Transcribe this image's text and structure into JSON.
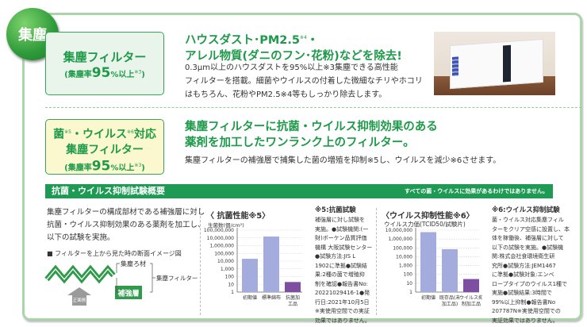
{
  "badge": "集塵",
  "section1": {
    "box_title": "集塵フィルター",
    "box_sub_prefix": "(集塵率",
    "box_sub_value": "95",
    "box_sub_suffix": "%以上",
    "box_note": "※3",
    ")": ")",
    "headline_1": "ハウスダスト･PM2.5",
    "headline_1_note": "※4",
    "headline_1_end": "・",
    "headline_2": "アレル物質(ダニのフン･花粉)などを除去!",
    "body": [
      "0.3μm以上のハウスダストを95%以上※3集塵できる高性能",
      "フィルターを搭載。細菌やウイルスの付着した微細なチリやホコリ",
      "はもちろん、花粉やPM2.5※4等もしっかり除去します。"
    ]
  },
  "section2": {
    "box_line1": "菌",
    "box_note5": "※5",
    "box_line1b": "・ウイルス",
    "box_note6": "※6",
    "box_line1c": "対応",
    "box_line2": "集塵フィルター",
    "box_sub_prefix": "(集塵率",
    "box_sub_value": "95",
    "box_sub_suffix": "%以上",
    "box_note": "※3",
    "headline_1": "集塵フィルターに抗菌・ウイルス抑制効果のある",
    "headline_2": "薬剤を加工したワンランク上のフィルター。",
    "body": "集塵フィルターの補強層で捕集した菌の増殖を抑制※5し、ウイルスを減少※6させます。"
  },
  "test": {
    "title": "抗菌・ウイルス抑制試験概要",
    "disclaimer": "すべての菌・ウイルスに効果があるわけではありません。",
    "intro": [
      "集塵フィルターの構成部材である補強層に対し",
      "抗菌・ウイルス抑制効果のある薬剤を加工し、",
      "以下の試験を実施。"
    ],
    "diagram_caption": "■ フィルターを上から見た時の断面イメージ図",
    "diagram_labels": {
      "media": "集塵ろ材",
      "filter": "集塵フィルター",
      "layer": "補強層",
      "front": "正面側"
    },
    "note5_title": "※5:抗菌試験",
    "note5_body": [
      "補強層に対し試験を",
      "実施。●試験機関:(一",
      "財)ボーケン品質評価",
      "機構 大阪試験センター",
      "●試験方法:JIS L",
      "1902に準拠●試験結",
      "果:2種の菌で増殖抑",
      "制を確認●報告書No:",
      "20221029416-1●発",
      "行日:2021年10月5日",
      "※実使用空間での実証",
      "効果ではありません。"
    ],
    "note6_title": "※6:ウイルス抑制試験",
    "note6_body": [
      "菌・ウイルス対応集塵フィル",
      "ターをクリア空感に設置し、本",
      "体を稼働後、補強層に対して",
      "以下の試験を実施。●試験機",
      "関:株式会社食環境衛生研",
      "究所●試験方法:JEM1467",
      "に準拠●試験対象:エンベ",
      "ロープタイプのウイルス1種で",
      "実施●試験結果:3時間で",
      "99%以上抑制●報告書No",
      "207787N※実使用空間での",
      "実証効果ではありません。"
    ]
  },
  "colors": {
    "accent": "#1f9a55",
    "bar_light": "#a3acdc",
    "bar_dark": "#7e4fa0",
    "border": "#a9d5a9"
  },
  "chart_data": [
    {
      "type": "bar",
      "title": "〈 抗菌性能※5〉",
      "ylabel": "生菌数(個/cm²)",
      "yscale": "log",
      "ylim": [
        1,
        100000000
      ],
      "yticks": [
        "100,000,000",
        "10,000,000",
        "1,000,000",
        "100,000",
        "10,000",
        "1,000",
        "100",
        "10",
        "1"
      ],
      "categories": [
        "初期値",
        "標準綿布",
        "抗菌加工品"
      ],
      "values": [
        20000,
        15000000,
        20
      ],
      "grid": true
    },
    {
      "type": "bar",
      "title": "〈ウイルス抑制性能※6〉",
      "ylabel": "ウイルス力価(TCID50/試験片)",
      "yscale": "log",
      "ylim": [
        1,
        10000000
      ],
      "yticks": [
        "10,000,000",
        "1,000,000",
        "100,000",
        "10,000",
        "1,000",
        "100",
        "10",
        "1"
      ],
      "categories": [
        "初期値",
        "既存品(未加工品)",
        "ウイルス抑制加工品"
      ],
      "values": [
        6000000,
        70000,
        30
      ],
      "grid": true
    }
  ]
}
